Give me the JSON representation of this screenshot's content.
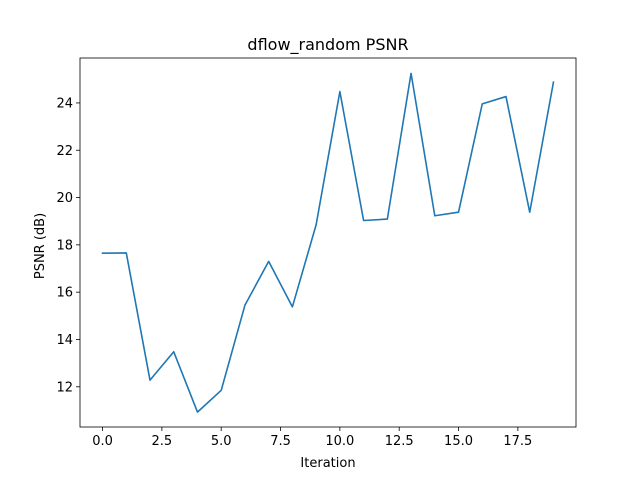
{
  "chart_data": {
    "type": "line",
    "title": "dflow_random PSNR",
    "xlabel": "Iteration",
    "ylabel": "PSNR (dB)",
    "xlim": [
      -0.95,
      19.95
    ],
    "ylim": [
      10.3,
      25.9
    ],
    "xticks": [
      0,
      2.5,
      5,
      7.5,
      10,
      12.5,
      15,
      17.5
    ],
    "xtick_labels": [
      "0.0",
      "2.5",
      "5.0",
      "7.5",
      "10.0",
      "12.5",
      "15.0",
      "17.5"
    ],
    "yticks": [
      12,
      14,
      16,
      18,
      20,
      22,
      24
    ],
    "ytick_labels": [
      "12",
      "14",
      "16",
      "18",
      "20",
      "22",
      "24"
    ],
    "grid": false,
    "series": [
      {
        "color": "#1f77b4",
        "x": [
          0,
          1,
          2,
          3,
          4,
          5,
          6,
          7,
          8,
          9,
          10,
          11,
          12,
          13,
          14,
          15,
          16,
          17,
          18,
          19
        ],
        "y": [
          17.65,
          17.66,
          12.28,
          13.48,
          10.93,
          11.85,
          15.45,
          17.3,
          15.38,
          18.85,
          24.48,
          19.03,
          19.09,
          25.25,
          19.23,
          19.38,
          23.96,
          24.27,
          19.38,
          24.88
        ]
      }
    ]
  }
}
